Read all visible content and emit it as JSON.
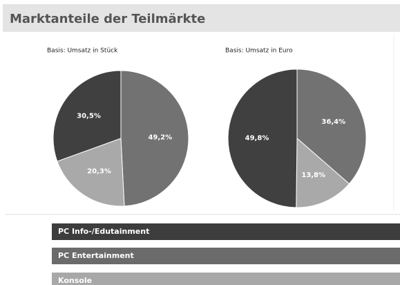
{
  "title": "Marktanteile der Teilmärkte",
  "chart_data": [
    {
      "type": "pie",
      "title": "Basis: Umsatz in Stück",
      "values": [
        49.2,
        20.3,
        30.5
      ],
      "value_labels": [
        "49,2%",
        "20,3%",
        "30,5%"
      ],
      "colors": [
        "#727272",
        "#a9a9a9",
        "#404040"
      ]
    },
    {
      "type": "pie",
      "title": "Basis: Umsatz in Euro",
      "values": [
        36.4,
        13.8,
        49.8
      ],
      "value_labels": [
        "36,4%",
        "13,8%",
        "49,8%"
      ],
      "colors": [
        "#727272",
        "#a9a9a9",
        "#404040"
      ]
    }
  ],
  "legend": [
    {
      "name": "PC Info-/Edutainment",
      "color": "#3d3d3d"
    },
    {
      "name": "PC Entertainment",
      "color": "#6b6b6b"
    },
    {
      "name": "Konsole",
      "color": "#a8a8a8"
    }
  ]
}
